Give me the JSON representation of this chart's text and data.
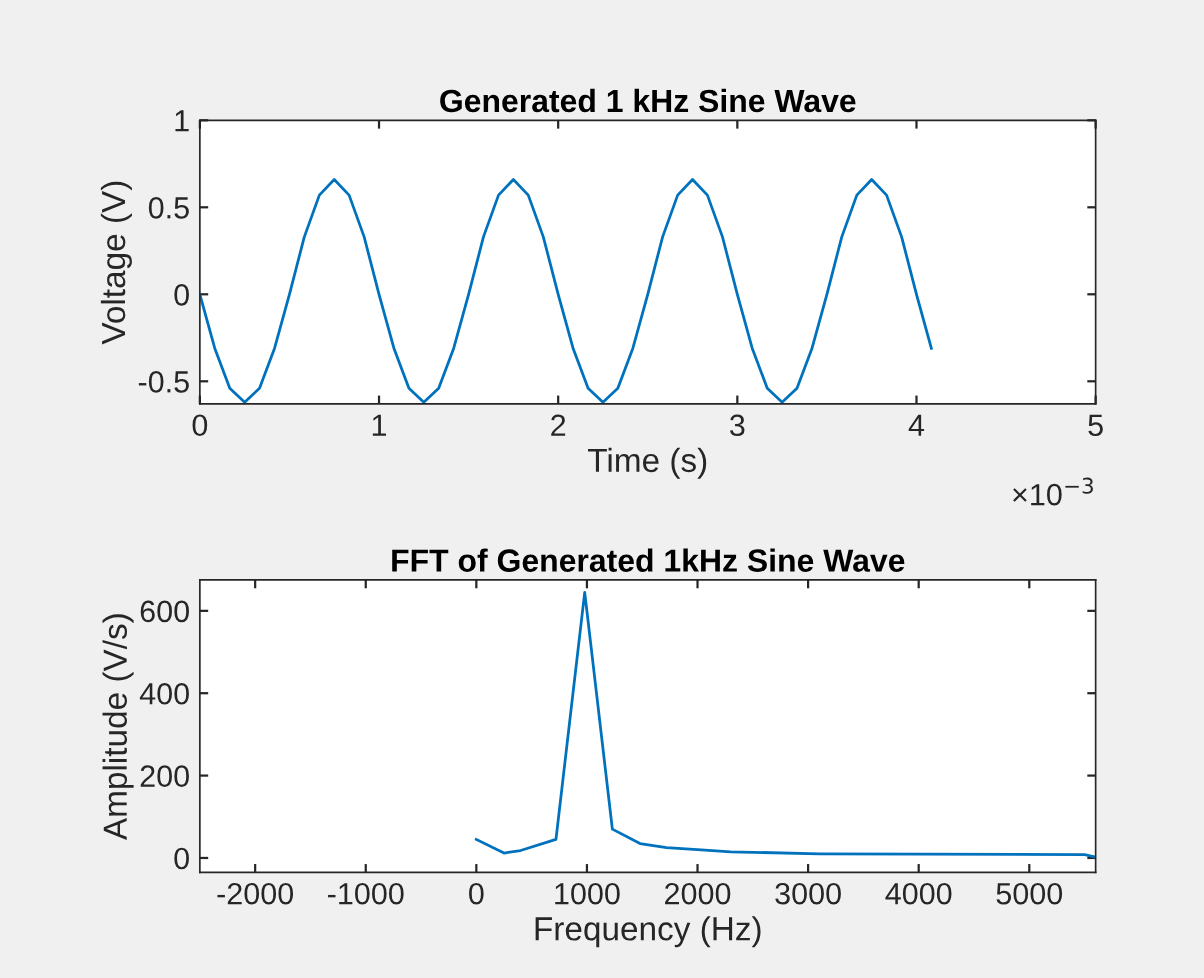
{
  "chart_data": [
    {
      "type": "line",
      "title": "Generated 1 kHz Sine Wave",
      "xlabel": "Time (s)",
      "ylabel": "Voltage (V)",
      "x": [
        0,
        0.083,
        0.167,
        0.25,
        0.333,
        0.417,
        0.5,
        0.583,
        0.667,
        0.75,
        0.833,
        0.917,
        1,
        1.083,
        1.167,
        1.25,
        1.333,
        1.417,
        1.5,
        1.583,
        1.667,
        1.75,
        1.833,
        1.917,
        2,
        2.083,
        2.167,
        2.25,
        2.333,
        2.417,
        2.5,
        2.583,
        2.667,
        2.75,
        2.833,
        2.917,
        3,
        3.083,
        3.167,
        3.25,
        3.333,
        3.417,
        3.5,
        3.583,
        3.667,
        3.75,
        3.833,
        3.917,
        4,
        4.083
      ],
      "series": [
        {
          "color": "#0072bd",
          "values": [
            0,
            -0.31,
            -0.54,
            -0.62,
            -0.54,
            -0.31,
            0,
            0.33,
            0.57,
            0.66,
            0.57,
            0.33,
            0,
            -0.31,
            -0.54,
            -0.62,
            -0.54,
            -0.31,
            0,
            0.33,
            0.57,
            0.66,
            0.57,
            0.33,
            0,
            -0.31,
            -0.54,
            -0.62,
            -0.54,
            -0.31,
            0,
            0.33,
            0.57,
            0.66,
            0.57,
            0.33,
            0,
            -0.31,
            -0.54,
            -0.62,
            -0.54,
            -0.31,
            0,
            0.33,
            0.57,
            0.66,
            0.57,
            0.33,
            0,
            -0.31
          ]
        }
      ],
      "xlim": [
        0,
        5
      ],
      "xticks": [
        0,
        1,
        2,
        3,
        4,
        5
      ],
      "ylim": [
        -0.63,
        1
      ],
      "yticks": [
        -0.5,
        0,
        0.5,
        1
      ],
      "grid": false,
      "legend": false,
      "annotations": [
        "×10$^{−3}$"
      ]
    },
    {
      "type": "line",
      "title": "FFT of Generated 1kHz Sine Wave",
      "xlabel": "Frequency (Hz)",
      "ylabel": "Amplitude (V/s)",
      "x": [
        0,
        250,
        400,
        720,
        980,
        1230,
        1480,
        1720,
        2000,
        2300,
        3100,
        5500,
        5600
      ],
      "series": [
        {
          "color": "#0072bd",
          "values": [
            45,
            12,
            18,
            45,
            645,
            70,
            35,
            25,
            20,
            15,
            10,
            8,
            2
          ]
        }
      ],
      "xlim": [
        -2500,
        5600
      ],
      "xticks": [
        -2000,
        -1000,
        0,
        1000,
        2000,
        3000,
        4000,
        5000
      ],
      "ylim": [
        -35,
        675
      ],
      "yticks": [
        0,
        200,
        400,
        600
      ],
      "grid": false,
      "legend": false
    }
  ]
}
